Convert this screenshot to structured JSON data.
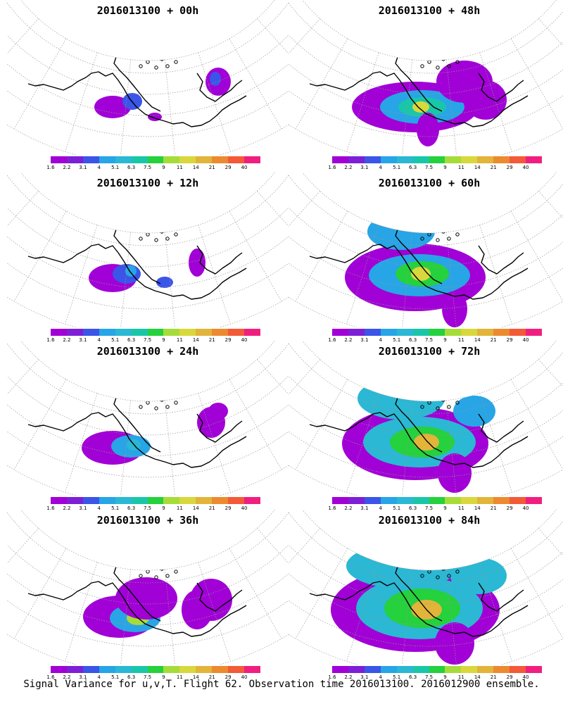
{
  "colorbar": {
    "labels": [
      "1.6",
      "2.2",
      "3.1",
      "4",
      "5.1",
      "6.3",
      "7.5",
      "9",
      "11",
      "14",
      "21",
      "29",
      "40"
    ],
    "colors": [
      "#a100d6",
      "#7d1fd6",
      "#3a55e8",
      "#27a5e6",
      "#2ab8d4",
      "#19c7a8",
      "#25d13c",
      "#a6dc3a",
      "#d8d83c",
      "#e2b43a",
      "#ec8a30",
      "#f25a38",
      "#f01f7f"
    ]
  },
  "panels": [
    {
      "title": "2016013100 + 00h",
      "forecast_hour": 0
    },
    {
      "title": "2016013100 + 48h",
      "forecast_hour": 48
    },
    {
      "title": "2016013100 + 12h",
      "forecast_hour": 12
    },
    {
      "title": "2016013100 + 60h",
      "forecast_hour": 60
    },
    {
      "title": "2016013100 + 24h",
      "forecast_hour": 24
    },
    {
      "title": "2016013100 + 72h",
      "forecast_hour": 72
    },
    {
      "title": "2016013100 + 36h",
      "forecast_hour": 36
    },
    {
      "title": "2016013100 + 84h",
      "forecast_hour": 84
    }
  ],
  "footer": "Signal Variance for u,v,T. Flight 62. Observation time 2016013100. 2016012900 ensemble."
}
